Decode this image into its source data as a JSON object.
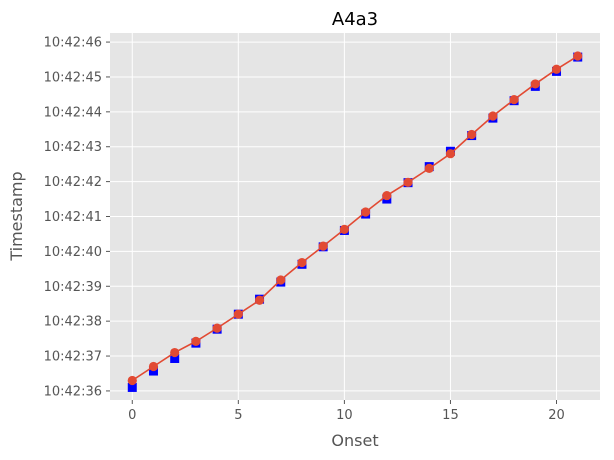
{
  "chart_data": {
    "type": "line",
    "title": "A4a3",
    "xlabel": "Onset",
    "ylabel": "Timestamp",
    "xlim": [
      -1.05,
      22.05
    ],
    "ylim": [
      -0.26,
      10.26
    ],
    "y_base_label": "10:42:36",
    "x_ticks": [
      0,
      5,
      10,
      15,
      20
    ],
    "x_tick_labels": [
      "0",
      "5",
      "10",
      "15",
      "20"
    ],
    "y_ticks": [
      0,
      1,
      2,
      3,
      4,
      5,
      6,
      7,
      8,
      9,
      10
    ],
    "y_tick_labels": [
      "10:42:36",
      "10:42:37",
      "10:42:38",
      "10:42:39",
      "10:42:40",
      "10:42:41",
      "10:42:42",
      "10:42:43",
      "10:42:44",
      "10:42:45",
      "10:42:46"
    ],
    "grid": true,
    "x": [
      0,
      1,
      2,
      3,
      4,
      5,
      6,
      7,
      8,
      9,
      10,
      11,
      12,
      13,
      14,
      15,
      16,
      17,
      18,
      19,
      20,
      21
    ],
    "series": [
      {
        "marker": "square",
        "color": "#0000ff",
        "line": false,
        "values": [
          0.1,
          0.57,
          0.93,
          1.37,
          1.77,
          2.2,
          2.63,
          3.12,
          3.63,
          4.13,
          4.6,
          5.07,
          5.5,
          5.97,
          6.43,
          6.87,
          7.32,
          7.82,
          8.32,
          8.73,
          9.16,
          9.57
        ]
      },
      {
        "marker": "circle",
        "color": "#e24a33",
        "line": true,
        "values": [
          0.3,
          0.7,
          1.1,
          1.42,
          1.8,
          2.2,
          2.6,
          3.18,
          3.68,
          4.15,
          4.63,
          5.13,
          5.6,
          5.98,
          6.38,
          6.8,
          7.35,
          7.88,
          8.35,
          8.8,
          9.22,
          9.6
        ]
      }
    ]
  }
}
